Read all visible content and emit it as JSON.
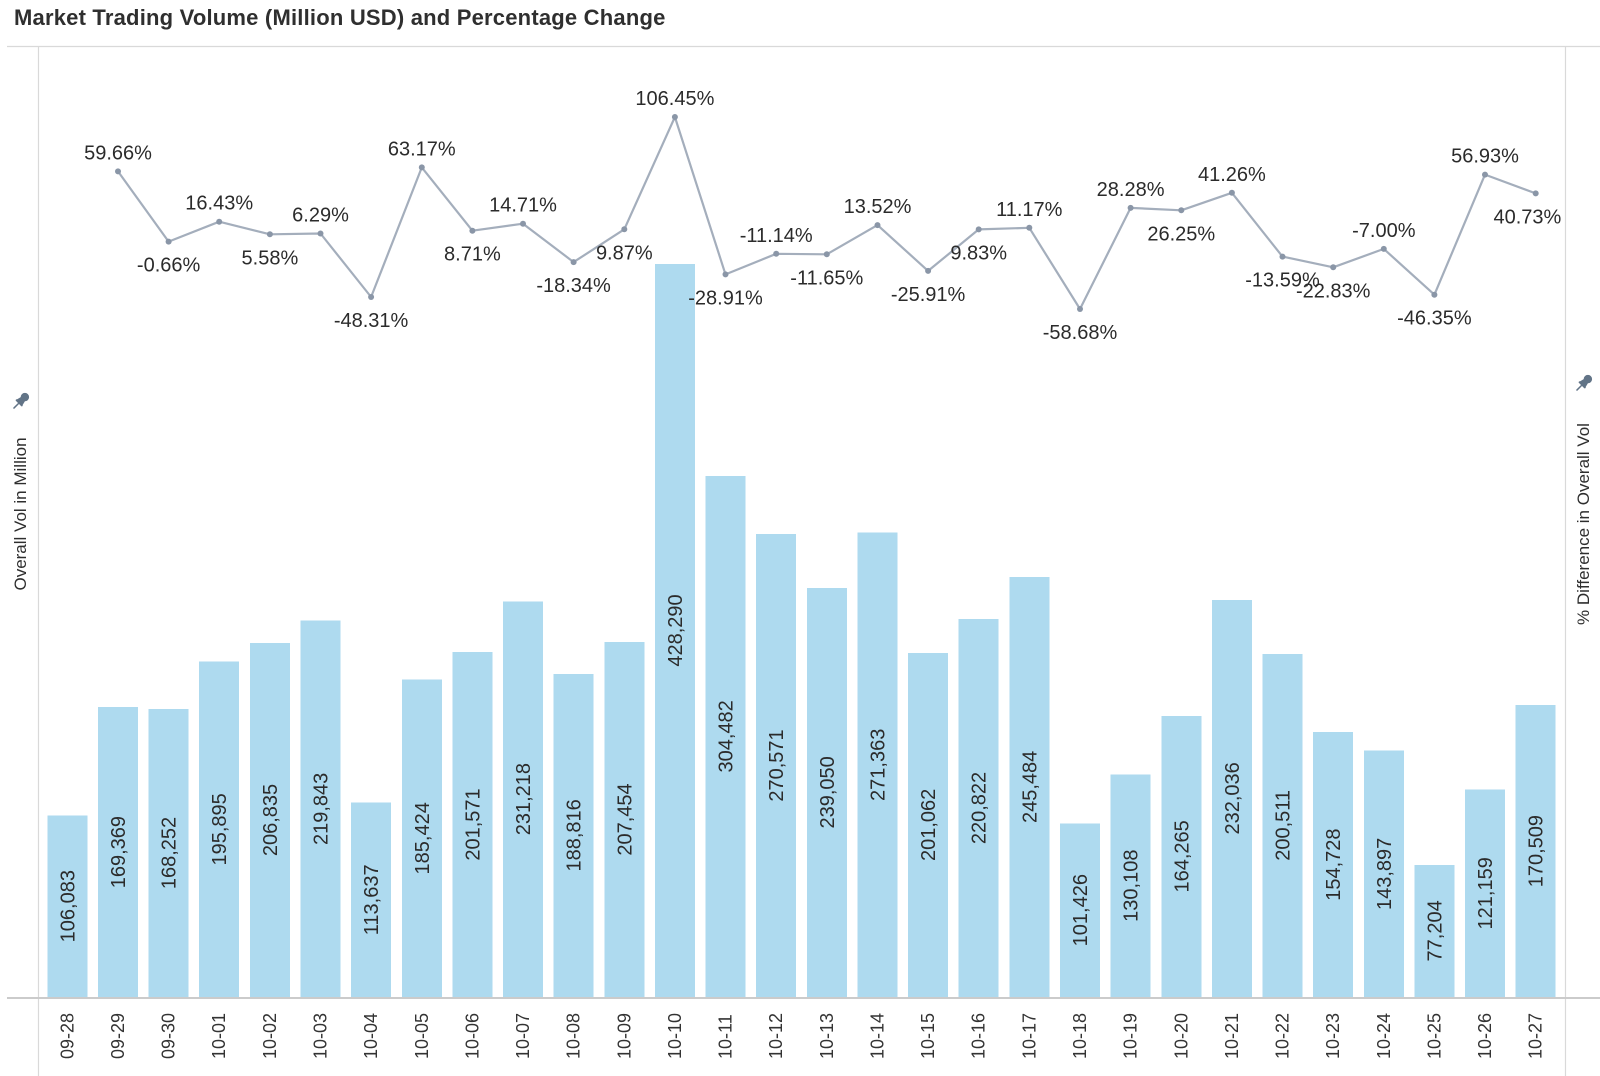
{
  "title": "Market Trading Volume (Million USD) and Percentage Change",
  "left_axis": {
    "label": "Overall Vol in Million",
    "icon": "pushpin-icon"
  },
  "right_axis": {
    "label": "% Difference in Overall Vol",
    "icon": "pushpin-icon"
  },
  "colors": {
    "bar_fill": "#AEDAEF",
    "line_stroke": "#A4AEBC",
    "marker_fill": "#8A96A7",
    "label_text": "#2b2b2b",
    "date_text": "#333333",
    "border": "#D9D9D9",
    "axis_line": "#CBCBCB",
    "pin": "#627487"
  },
  "chart_data": {
    "type": "combo-bar-line-dual-axis",
    "title": "Market Trading Volume (Million USD) and Percentage Change",
    "xlabel": "",
    "ylabel_left": "Overall Vol in Million",
    "ylabel_right": "% Difference in Overall Vol",
    "grid": false,
    "value_labels_rotated": true,
    "categories": [
      "09-28",
      "09-29",
      "09-30",
      "10-01",
      "10-02",
      "10-03",
      "10-04",
      "10-05",
      "10-06",
      "10-07",
      "10-08",
      "10-09",
      "10-10",
      "10-11",
      "10-12",
      "10-13",
      "10-14",
      "10-15",
      "10-16",
      "10-17",
      "10-18",
      "10-19",
      "10-20",
      "10-21",
      "10-22",
      "10-23",
      "10-24",
      "10-25",
      "10-26",
      "10-27"
    ],
    "series": [
      {
        "name": "Overall Vol in Million",
        "type": "bar",
        "axis": "left",
        "values": [
          106083,
          169369,
          168252,
          195895,
          206835,
          219843,
          113637,
          185424,
          201571,
          231218,
          188816,
          207454,
          428290,
          304482,
          270571,
          239050,
          271363,
          201062,
          220822,
          245484,
          101426,
          130108,
          164265,
          232036,
          200511,
          154728,
          143897,
          77204,
          121159,
          170509
        ],
        "labels": [
          "106,083",
          "169,369",
          "168,252",
          "195,895",
          "206,835",
          "219,843",
          "113,637",
          "185,424",
          "201,571",
          "231,218",
          "188,816",
          "207,454",
          "428,290",
          "304,482",
          "270,571",
          "239,050",
          "271,363",
          "201,062",
          "220,822",
          "245,484",
          "101,426",
          "130,108",
          "164,265",
          "232,036",
          "200,511",
          "154,728",
          "143,897",
          "77,204",
          "121,159",
          "170,509"
        ]
      },
      {
        "name": "% Difference in Overall Vol",
        "type": "line",
        "axis": "right",
        "start_index": 1,
        "values": [
          59.66,
          -0.66,
          16.43,
          5.58,
          6.29,
          -48.31,
          63.17,
          8.71,
          14.71,
          -18.34,
          9.87,
          106.45,
          -28.91,
          -11.14,
          -11.65,
          13.52,
          -25.91,
          9.83,
          11.17,
          -58.68,
          28.28,
          26.25,
          41.26,
          -13.59,
          -22.83,
          -7.0,
          -46.35,
          56.93,
          40.73
        ],
        "labels": [
          "59.66%",
          "-0.66%",
          "16.43%",
          "5.58%",
          "6.29%",
          "-48.31%",
          "63.17%",
          "8.71%",
          "14.71%",
          "-18.34%",
          "9.87%",
          "106.45%",
          "-28.91%",
          "-11.14%",
          "-11.65%",
          "13.52%",
          "-25.91%",
          "9.83%",
          "11.17%",
          "-58.68%",
          "28.28%",
          "26.25%",
          "41.26%",
          "-13.59%",
          "-22.83%",
          "-7.00%",
          "-46.35%",
          "56.93%",
          "40.73%"
        ]
      }
    ]
  }
}
